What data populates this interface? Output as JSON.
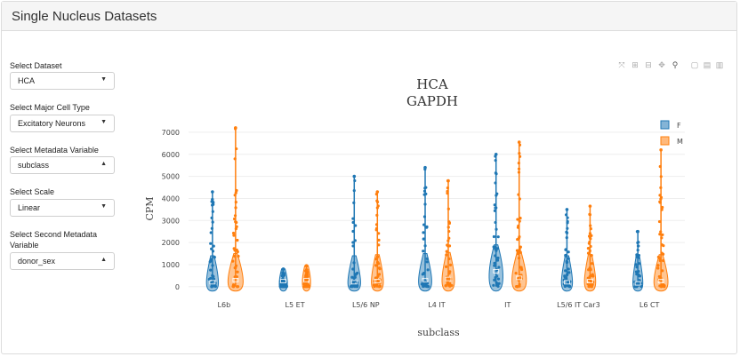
{
  "header": {
    "title": "Single Nucleus Datasets"
  },
  "controls": {
    "dataset": {
      "label": "Select Dataset",
      "value": "HCA"
    },
    "cell_type": {
      "label": "Select Major Cell Type",
      "value": "Excitatory Neurons"
    },
    "metadata": {
      "label": "Select Metadata Variable",
      "value": "subclass"
    },
    "scale": {
      "label": "Select Scale",
      "value": "Linear"
    },
    "second_metadata": {
      "label": "Select Second Metadata Variable",
      "value": "donor_sex"
    }
  },
  "toolbar": {
    "icons": [
      "autoscale-icon",
      "zoom-in-icon",
      "zoom-out-icon",
      "pan-icon",
      "zoom-icon",
      "box-select-icon",
      "download-png-icon",
      "download-svg-icon"
    ]
  },
  "chart_data": {
    "type": "violin",
    "title": "HCA",
    "subtitle": "GAPDH",
    "xlabel": "subclass",
    "ylabel": "CPM",
    "ylim": [
      -250,
      7400
    ],
    "yticks": [
      0,
      1000,
      2000,
      3000,
      4000,
      5000,
      6000,
      7000
    ],
    "categories": [
      "L6b",
      "L5 ET",
      "L5/6 NP",
      "L4 IT",
      "IT",
      "L5/6 IT Car3",
      "L6 CT"
    ],
    "legend_position": "top-right",
    "series": [
      {
        "name": "F",
        "color": "#1f77b4",
        "max": [
          4300,
          800,
          5000,
          5400,
          6000,
          3500,
          2500
        ],
        "median": [
          200,
          250,
          200,
          300,
          700,
          200,
          150
        ]
      },
      {
        "name": "M",
        "color": "#ff7f0e",
        "max": [
          7200,
          950,
          4300,
          4800,
          6550,
          3650,
          6200
        ],
        "median": [
          300,
          300,
          250,
          350,
          400,
          250,
          250
        ]
      }
    ]
  }
}
